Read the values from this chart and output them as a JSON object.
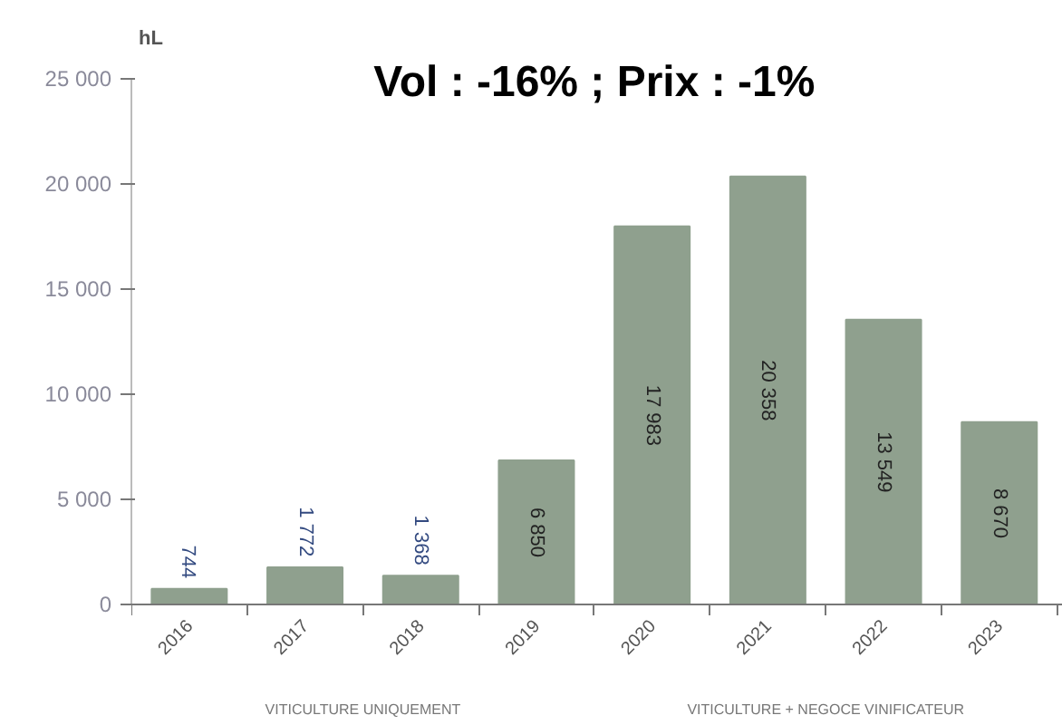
{
  "chart_data": {
    "type": "bar",
    "title": "Vol : -16% ; Prix : -1%",
    "ylabel": "hL",
    "categories": [
      "2016",
      "2017",
      "2018",
      "2019",
      "2020",
      "2021",
      "2022",
      "2023"
    ],
    "values": [
      744,
      1772,
      1368,
      6850,
      17983,
      20358,
      13549,
      8670
    ],
    "value_labels": [
      "744",
      "1 772",
      "1 368",
      "6 850",
      "17 983",
      "20 358",
      "13 549",
      "8 670"
    ],
    "color": "#8fa08e",
    "ylim": [
      0,
      25000
    ],
    "yticks": [
      {
        "value": 0,
        "label": "0"
      },
      {
        "value": 5000,
        "label": "5 000"
      },
      {
        "value": 10000,
        "label": "10 000"
      },
      {
        "value": 15000,
        "label": "15 000"
      },
      {
        "value": 20000,
        "label": "20 000"
      },
      {
        "value": 25000,
        "label": "25 000"
      }
    ],
    "annotations": [
      "VITICULTURE UNIQUEMENT",
      "VITICULTURE + NEGOCE VINIFICATEUR"
    ],
    "grid": false
  }
}
